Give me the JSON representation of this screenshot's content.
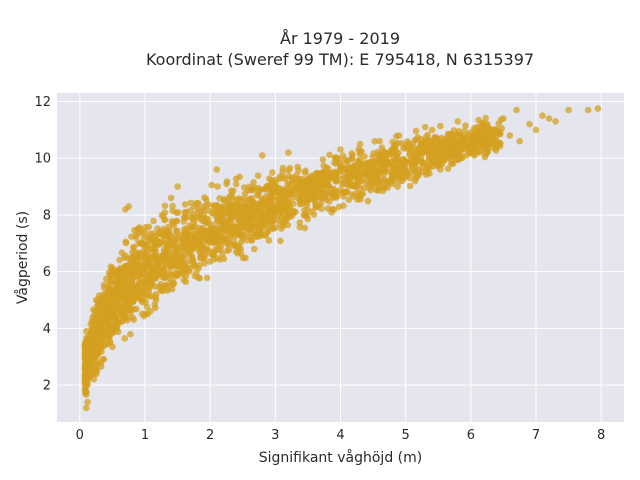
{
  "chart_data": {
    "type": "scatter",
    "title_lines": [
      "År 1979 - 2019",
      "Koordinat (Sweref 99 TM): E 795418, N 6315397"
    ],
    "xlabel": "Signifikant våghöjd (m)",
    "ylabel": "Vågperiod (s)",
    "xlim": [
      -0.35,
      8.35
    ],
    "ylim": [
      0.7,
      12.3
    ],
    "x_ticks": [
      0,
      1,
      2,
      3,
      4,
      5,
      6,
      7,
      8
    ],
    "y_ticks": [
      2,
      4,
      6,
      8,
      10,
      12
    ],
    "grid": true,
    "marker_color": "#D4A020",
    "background_color": "#E5E5EE",
    "envelope": {
      "x": [
        0.1,
        0.3,
        0.5,
        0.75,
        1.0,
        1.5,
        2.0,
        2.5,
        3.0,
        3.5,
        4.0,
        4.5,
        5.0,
        5.5,
        6.0,
        6.5,
        7.0,
        7.5,
        8.0
      ],
      "y_low": [
        1.2,
        2.2,
        2.8,
        3.3,
        3.8,
        4.7,
        5.5,
        6.2,
        6.8,
        7.4,
        7.9,
        8.3,
        8.8,
        9.3,
        9.6,
        10.0,
        10.4,
        10.8,
        11.2
      ],
      "y_high": [
        4.2,
        5.8,
        6.8,
        7.8,
        8.3,
        8.8,
        9.3,
        9.6,
        9.9,
        10.2,
        10.6,
        10.9,
        11.1,
        11.3,
        11.5,
        11.7,
        11.8,
        11.8,
        11.8
      ]
    },
    "outlier_points": [
      [
        6.7,
        11.7
      ],
      [
        7.5,
        11.7
      ],
      [
        7.8,
        11.7
      ],
      [
        7.95,
        11.75
      ],
      [
        7.1,
        11.5
      ],
      [
        6.9,
        11.2
      ],
      [
        7.2,
        11.4
      ],
      [
        7.3,
        11.3
      ],
      [
        5.8,
        11.3
      ],
      [
        6.1,
        11.1
      ],
      [
        6.5,
        11.4
      ],
      [
        6.6,
        10.8
      ],
      [
        6.75,
        10.6
      ],
      [
        5.9,
        10.5
      ],
      [
        6.3,
        10.6
      ],
      [
        5.3,
        11.1
      ],
      [
        4.9,
        10.8
      ],
      [
        6.2,
        10.2
      ],
      [
        7.0,
        11.0
      ],
      [
        4.6,
        10.6
      ],
      [
        4.3,
        10.5
      ],
      [
        5.7,
        9.8
      ],
      [
        5.2,
        9.4
      ],
      [
        4.8,
        9.1
      ],
      [
        4.1,
        8.8
      ],
      [
        3.7,
        8.4
      ],
      [
        2.8,
        10.1
      ],
      [
        3.2,
        10.2
      ],
      [
        2.1,
        9.6
      ],
      [
        1.5,
        9.0
      ],
      [
        1.4,
        8.6
      ],
      [
        0.7,
        8.2
      ],
      [
        0.75,
        8.3
      ],
      [
        0.1,
        1.2
      ],
      [
        0.12,
        1.4
      ]
    ]
  }
}
